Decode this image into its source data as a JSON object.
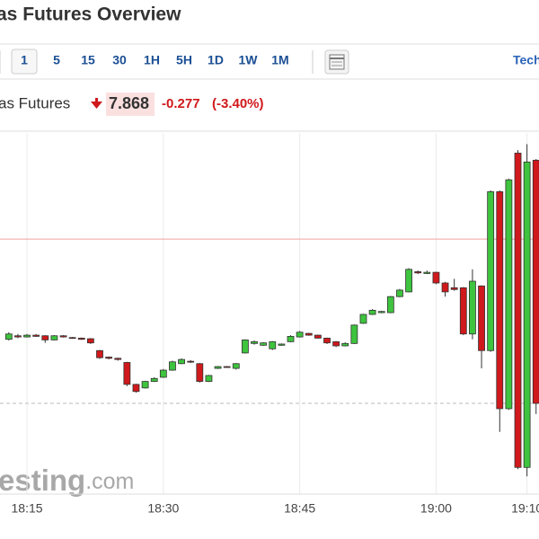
{
  "header": {
    "title": "as Futures Overview"
  },
  "toolbar": {
    "intervals": [
      "1",
      "5",
      "15",
      "30",
      "1H",
      "5H",
      "1D",
      "1W",
      "1M"
    ],
    "selected": "1",
    "right_label": "Tech"
  },
  "quote": {
    "name": "as Futures",
    "price": "7.868",
    "change": "-0.277",
    "change_pct": "(-3.40%)"
  },
  "watermark": {
    "left": "esting",
    "right": ".com"
  },
  "chart_data": {
    "type": "candlestick",
    "categories": [
      null,
      null,
      "18:15",
      null,
      null,
      null,
      null,
      null,
      null,
      null,
      null,
      null,
      null,
      null,
      null,
      null,
      null,
      "18:30",
      null,
      null,
      null,
      null,
      null,
      null,
      null,
      null,
      null,
      null,
      null,
      null,
      null,
      null,
      "18:45",
      null,
      null,
      null,
      null,
      null,
      null,
      null,
      null,
      null,
      null,
      null,
      null,
      null,
      null,
      "19:00",
      null,
      null,
      null,
      null,
      null,
      null,
      null,
      null,
      null,
      "19:10",
      null
    ],
    "open": [
      7.976,
      7.982,
      7.98,
      7.983,
      7.982,
      7.975,
      7.982,
      7.979,
      7.978,
      7.977,
      7.957,
      7.946,
      7.944,
      7.937,
      7.9,
      7.894,
      7.905,
      7.912,
      7.924,
      7.935,
      7.939,
      7.935,
      7.905,
      7.927,
      7.93,
      7.927,
      7.953,
      7.969,
      7.966,
      7.96,
      7.966,
      7.972,
      7.98,
      7.986,
      7.983,
      7.978,
      7.972,
      7.965,
      7.969,
      8.003,
      8.018,
      8.021,
      8.021,
      8.048,
      8.056,
      8.09,
      8.087,
      8.089,
      8.071,
      8.063,
      8.063,
      7.985,
      8.066,
      7.957,
      8.225,
      7.859,
      8.29,
      7.76,
      8.278
    ],
    "high": [
      7.988,
      7.985,
      7.985,
      7.985,
      7.983,
      7.983,
      7.983,
      7.98,
      7.979,
      7.978,
      7.958,
      7.947,
      7.945,
      7.938,
      7.901,
      7.906,
      7.912,
      7.926,
      7.94,
      7.944,
      7.941,
      7.936,
      7.916,
      7.931,
      7.931,
      7.936,
      7.976,
      7.974,
      7.971,
      7.973,
      7.969,
      7.983,
      7.99,
      7.987,
      7.984,
      7.979,
      7.973,
      7.971,
      8.001,
      8.019,
      8.027,
      8.024,
      8.049,
      8.061,
      8.096,
      8.092,
      8.092,
      8.09,
      8.073,
      8.078,
      8.064,
      8.094,
      8.067,
      8.227,
      8.227,
      8.247,
      8.295,
      8.305,
      8.28
    ],
    "low": [
      7.974,
      7.978,
      7.979,
      7.98,
      7.97,
      7.974,
      7.979,
      7.977,
      7.975,
      7.968,
      7.943,
      7.942,
      7.94,
      7.897,
      7.886,
      7.893,
      7.904,
      7.911,
      7.923,
      7.934,
      7.936,
      7.903,
      7.904,
      7.926,
      7.928,
      7.925,
      7.952,
      7.967,
      7.965,
      7.958,
      7.965,
      7.971,
      7.979,
      7.982,
      7.977,
      7.968,
      7.963,
      7.964,
      7.968,
      8.002,
      8.017,
      8.02,
      8.02,
      8.047,
      8.055,
      8.086,
      8.086,
      8.069,
      8.048,
      8.058,
      7.983,
      7.976,
      7.927,
      7.955,
      7.82,
      7.857,
      7.757,
      7.745,
      7.85
    ],
    "close": [
      7.985,
      7.98,
      7.983,
      7.981,
      7.975,
      7.982,
      7.98,
      7.978,
      7.976,
      7.97,
      7.945,
      7.944,
      7.942,
      7.9,
      7.888,
      7.905,
      7.91,
      7.924,
      7.938,
      7.942,
      7.938,
      7.905,
      7.915,
      7.93,
      7.929,
      7.935,
      7.975,
      7.972,
      7.97,
      7.972,
      7.968,
      7.981,
      7.988,
      7.983,
      7.978,
      7.97,
      7.965,
      7.969,
      8.0,
      8.018,
      8.025,
      8.023,
      8.048,
      8.059,
      8.094,
      8.088,
      8.089,
      8.071,
      8.056,
      8.06,
      7.985,
      8.074,
      7.957,
      8.225,
      7.859,
      8.245,
      7.76,
      8.275,
      7.868
    ],
    "up_color": "#3ec43e",
    "down_color": "#d0191c",
    "ylim": [
      7.715,
      8.324
    ],
    "reference_lines": [
      {
        "value": 8.145,
        "color": "#f2a0a0",
        "style": "solid"
      },
      {
        "value": 7.868,
        "color": "#bbbbbb",
        "style": "dashed"
      }
    ],
    "grid": true
  }
}
